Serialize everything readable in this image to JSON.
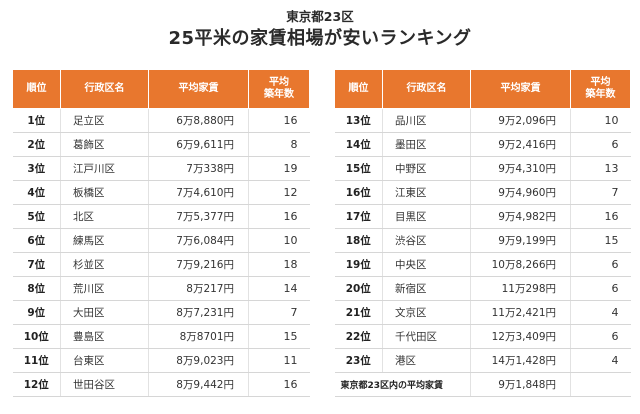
{
  "subtitle": "東京都23区",
  "title": "25平米の家賃相場が安いランキング",
  "headers": {
    "rank": "順位",
    "ward": "行政区名",
    "rent": "平均家賃",
    "age_line1": "平均",
    "age_line2": "築年数"
  },
  "left_rows": [
    {
      "rank": "1位",
      "ward": "足立区",
      "rent": "6万8,880円",
      "age": "16"
    },
    {
      "rank": "2位",
      "ward": "葛飾区",
      "rent": "6万9,611円",
      "age": "8"
    },
    {
      "rank": "3位",
      "ward": "江戸川区",
      "rent": "7万338円",
      "age": "19"
    },
    {
      "rank": "4位",
      "ward": "板橋区",
      "rent": "7万4,610円",
      "age": "12"
    },
    {
      "rank": "5位",
      "ward": "北区",
      "rent": "7万5,377円",
      "age": "16"
    },
    {
      "rank": "6位",
      "ward": "練馬区",
      "rent": "7万6,084円",
      "age": "10"
    },
    {
      "rank": "7位",
      "ward": "杉並区",
      "rent": "7万9,216円",
      "age": "18"
    },
    {
      "rank": "8位",
      "ward": "荒川区",
      "rent": "8万217円",
      "age": "14"
    },
    {
      "rank": "9位",
      "ward": "大田区",
      "rent": "8万7,231円",
      "age": "7"
    },
    {
      "rank": "10位",
      "ward": "豊島区",
      "rent": "8万8701円",
      "age": "15"
    },
    {
      "rank": "11位",
      "ward": "台東区",
      "rent": "8万9,023円",
      "age": "11"
    },
    {
      "rank": "12位",
      "ward": "世田谷区",
      "rent": "8万9,442円",
      "age": "16"
    }
  ],
  "right_rows": [
    {
      "rank": "13位",
      "ward": "品川区",
      "rent": "9万2,096円",
      "age": "10"
    },
    {
      "rank": "14位",
      "ward": "墨田区",
      "rent": "9万2,416円",
      "age": "6"
    },
    {
      "rank": "15位",
      "ward": "中野区",
      "rent": "9万4,310円",
      "age": "13"
    },
    {
      "rank": "16位",
      "ward": "江東区",
      "rent": "9万4,960円",
      "age": "7"
    },
    {
      "rank": "17位",
      "ward": "目黒区",
      "rent": "9万4,982円",
      "age": "16"
    },
    {
      "rank": "18位",
      "ward": "渋谷区",
      "rent": "9万9,199円",
      "age": "15"
    },
    {
      "rank": "19位",
      "ward": "中央区",
      "rent": "10万8,266円",
      "age": "6"
    },
    {
      "rank": "20位",
      "ward": "新宿区",
      "rent": "11万298円",
      "age": "6"
    },
    {
      "rank": "21位",
      "ward": "文京区",
      "rent": "11万2,421円",
      "age": "4"
    },
    {
      "rank": "22位",
      "ward": "千代田区",
      "rent": "12万3,409円",
      "age": "6"
    },
    {
      "rank": "23位",
      "ward": "港区",
      "rent": "14万1,428円",
      "age": "4"
    }
  ],
  "average": {
    "label": "東京都23区内の平均家賃",
    "rent": "9万1,848円"
  },
  "colors": {
    "header_bg": "#e8772e",
    "header_text": "#ffffff"
  }
}
